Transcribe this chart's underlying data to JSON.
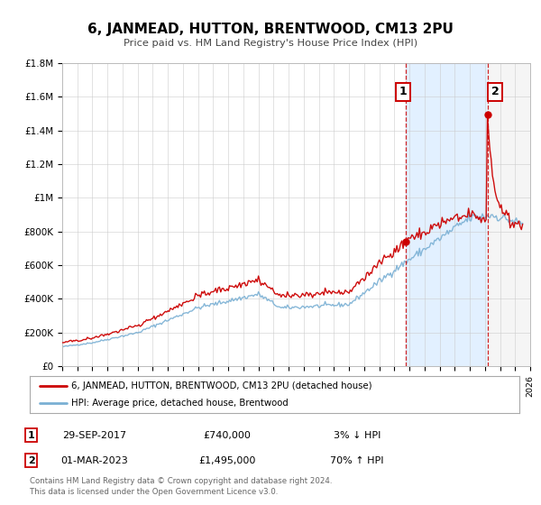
{
  "title": "6, JANMEAD, HUTTON, BRENTWOOD, CM13 2PU",
  "subtitle": "Price paid vs. HM Land Registry's House Price Index (HPI)",
  "legend_label_red": "6, JANMEAD, HUTTON, BRENTWOOD, CM13 2PU (detached house)",
  "legend_label_blue": "HPI: Average price, detached house, Brentwood",
  "annotation1_date": "29-SEP-2017",
  "annotation1_price": "£740,000",
  "annotation1_hpi": "3% ↓ HPI",
  "annotation2_date": "01-MAR-2023",
  "annotation2_price": "£1,495,000",
  "annotation2_hpi": "70% ↑ HPI",
  "footnote1": "Contains HM Land Registry data © Crown copyright and database right 2024.",
  "footnote2": "This data is licensed under the Open Government Licence v3.0.",
  "xmin": 1995,
  "xmax": 2026,
  "ymin": 0,
  "ymax": 1800000,
  "sale1_year": 2017.75,
  "sale1_value": 740000,
  "sale2_year": 2023.17,
  "sale2_value": 1495000,
  "color_red": "#cc0000",
  "color_blue": "#7ab0d4",
  "color_dashed": "#cc0000",
  "shaded_blue_start": 2017.75,
  "shaded_blue_end": 2023.17,
  "shaded_hatch_start": 2023.17,
  "shaded_hatch_end": 2026,
  "background_color": "#ffffff",
  "grid_color": "#cccccc",
  "yticks": [
    0,
    200000,
    400000,
    600000,
    800000,
    1000000,
    1200000,
    1400000,
    1600000,
    1800000
  ],
  "ylabels": [
    "£0",
    "£200K",
    "£400K",
    "£600K",
    "£800K",
    "£1M",
    "£1.2M",
    "£1.4M",
    "£1.6M",
    "£1.8M"
  ]
}
